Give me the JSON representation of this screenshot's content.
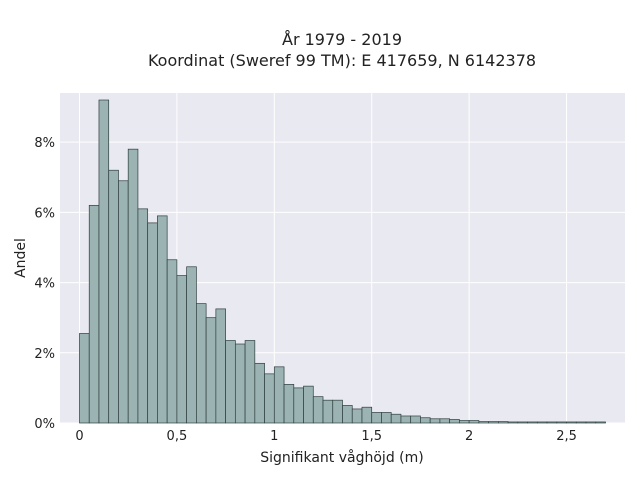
{
  "chart_data": {
    "type": "bar",
    "title_line1": "År 1979 - 2019",
    "title_line2": "Koordinat (Sweref 99 TM): E 417659, N 6142378",
    "xlabel": "Signifikant våghöjd (m)",
    "ylabel": "Andel",
    "bin_width": 0.05,
    "bin_start": 0.0,
    "values": [
      2.55,
      6.2,
      9.2,
      7.2,
      6.9,
      7.8,
      6.1,
      5.7,
      5.9,
      4.65,
      4.2,
      4.45,
      3.4,
      3.0,
      3.25,
      2.35,
      2.25,
      2.35,
      1.7,
      1.4,
      1.6,
      1.1,
      1.0,
      1.05,
      0.75,
      0.65,
      0.65,
      0.5,
      0.4,
      0.45,
      0.3,
      0.3,
      0.25,
      0.2,
      0.2,
      0.15,
      0.12,
      0.12,
      0.1,
      0.07,
      0.07,
      0.04,
      0.04,
      0.04,
      0.03,
      0.03,
      0.03,
      0.03,
      0.03,
      0.03,
      0.03,
      0.03,
      0.03,
      0.03
    ],
    "xlim": [
      -0.1,
      2.8
    ],
    "ylim": [
      0,
      9.4
    ],
    "xticks": [
      0,
      0.5,
      1,
      1.5,
      2,
      2.5
    ],
    "xtick_labels": [
      "0",
      "0,5",
      "1",
      "1,5",
      "2",
      "2,5"
    ],
    "yticks": [
      0,
      2,
      4,
      6,
      8
    ],
    "ytick_labels": [
      "0%",
      "2%",
      "4%",
      "6%",
      "8%"
    ],
    "grid": true,
    "colors": {
      "bar_fill": "#9bb3b3",
      "bar_edge": "#2f3f3f",
      "plot_bg": "#e9e9f1",
      "grid": "#ffffff"
    }
  }
}
